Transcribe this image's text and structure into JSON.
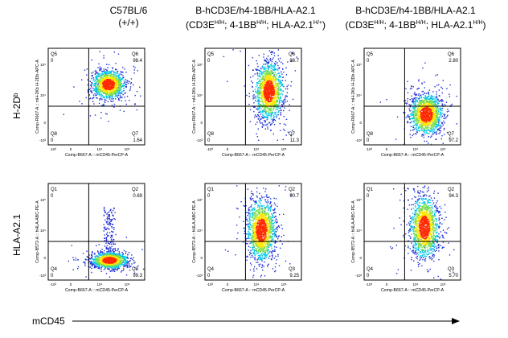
{
  "columns": [
    {
      "title_line1": "C57BL/6",
      "title_line2": "(+/+)"
    },
    {
      "title_line1": "B-hCD3E/h4-1BB/HLA-A2.1",
      "title_line2_parts": [
        "(CD3E",
        "H/H",
        "; 4-1BB",
        "H/H",
        "; HLA-A2.1",
        "H/+",
        ")"
      ]
    },
    {
      "title_line1": "B-hCD3E/h4-1BB/HLA-A2.1",
      "title_line2_parts": [
        "(CD3E",
        "H/H",
        "; 4-1BB",
        "H/H",
        "; HLA-A2.1",
        "H/H",
        ")"
      ]
    }
  ],
  "rows": [
    {
      "label": "H-2Dᵇ",
      "ylabel": "Comp-R667-A :: mH-2Kb H-2Db-APC-A"
    },
    {
      "label": "HLA-A2.1",
      "ylabel": "Comp-B572-A :: hHLA-ABC-PE-A"
    }
  ],
  "xaxis_title": "mCD45",
  "colors": {
    "low": "#1f2fd6",
    "mid": "#00c8e8",
    "mid2": "#7ce04a",
    "high": "#ffe600",
    "peak": "#ff2a00"
  },
  "chart_data": {
    "type": "scatter",
    "xlabel": "Comp-B667-A :: mCD45-PerCP-A",
    "tick_labels": {
      "zero": "0",
      "neg": "-10³",
      "t4": "10⁴",
      "t5": "10⁵"
    },
    "panels": [
      {
        "row": 0,
        "col": 0,
        "quadrants": {
          "ul": {
            "name": "Q5",
            "value": "0"
          },
          "ur": {
            "name": "Q6",
            "value": "98.4"
          },
          "ll": {
            "name": "Q8",
            "value": "0"
          },
          "lr": {
            "name": "Q7",
            "value": "1.64"
          }
        },
        "cluster": {
          "cx": 0.62,
          "cy": 0.63,
          "sx": 0.08,
          "sy": 0.07,
          "n": 1200,
          "tail": 0
        }
      },
      {
        "row": 0,
        "col": 1,
        "quadrants": {
          "ul": {
            "name": "Q5",
            "value": "0"
          },
          "ur": {
            "name": "Q6",
            "value": "88.7"
          },
          "ll": {
            "name": "Q8",
            "value": "0"
          },
          "lr": {
            "name": "Q7",
            "value": "11.3"
          }
        },
        "cluster": {
          "cx": 0.66,
          "cy": 0.56,
          "sx": 0.07,
          "sy": 0.14,
          "n": 1400,
          "tail": 0
        }
      },
      {
        "row": 0,
        "col": 2,
        "quadrants": {
          "ul": {
            "name": "Q5",
            "value": "0"
          },
          "ur": {
            "name": "Q6",
            "value": "2.80"
          },
          "ll": {
            "name": "Q8",
            "value": "0"
          },
          "lr": {
            "name": "Q7",
            "value": "97.2"
          }
        },
        "cluster": {
          "cx": 0.64,
          "cy": 0.32,
          "sx": 0.08,
          "sy": 0.1,
          "n": 1300,
          "tail": 0
        }
      },
      {
        "row": 1,
        "col": 0,
        "quadrants": {
          "ul": {
            "name": "Q1",
            "value": "0"
          },
          "ur": {
            "name": "Q2",
            "value": "0.69"
          },
          "ll": {
            "name": "Q4",
            "value": "0"
          },
          "lr": {
            "name": "Q3",
            "value": "99.3"
          }
        },
        "cluster": {
          "cx": 0.63,
          "cy": 0.21,
          "sx": 0.09,
          "sy": 0.04,
          "n": 1200,
          "tail": 1
        }
      },
      {
        "row": 1,
        "col": 1,
        "quadrants": {
          "ul": {
            "name": "Q1",
            "value": "0"
          },
          "ur": {
            "name": "Q2",
            "value": "90.7"
          },
          "ll": {
            "name": "Q4",
            "value": "0"
          },
          "lr": {
            "name": "Q3",
            "value": "9.25"
          }
        },
        "cluster": {
          "cx": 0.58,
          "cy": 0.52,
          "sx": 0.07,
          "sy": 0.15,
          "n": 1400,
          "tail": 0
        }
      },
      {
        "row": 1,
        "col": 2,
        "quadrants": {
          "ul": {
            "name": "Q1",
            "value": "0"
          },
          "ur": {
            "name": "Q2",
            "value": "94.3"
          },
          "ll": {
            "name": "Q4",
            "value": "0"
          },
          "lr": {
            "name": "Q3",
            "value": "5.70"
          }
        },
        "cluster": {
          "cx": 0.62,
          "cy": 0.55,
          "sx": 0.07,
          "sy": 0.15,
          "n": 1400,
          "tail": 0
        }
      }
    ]
  }
}
